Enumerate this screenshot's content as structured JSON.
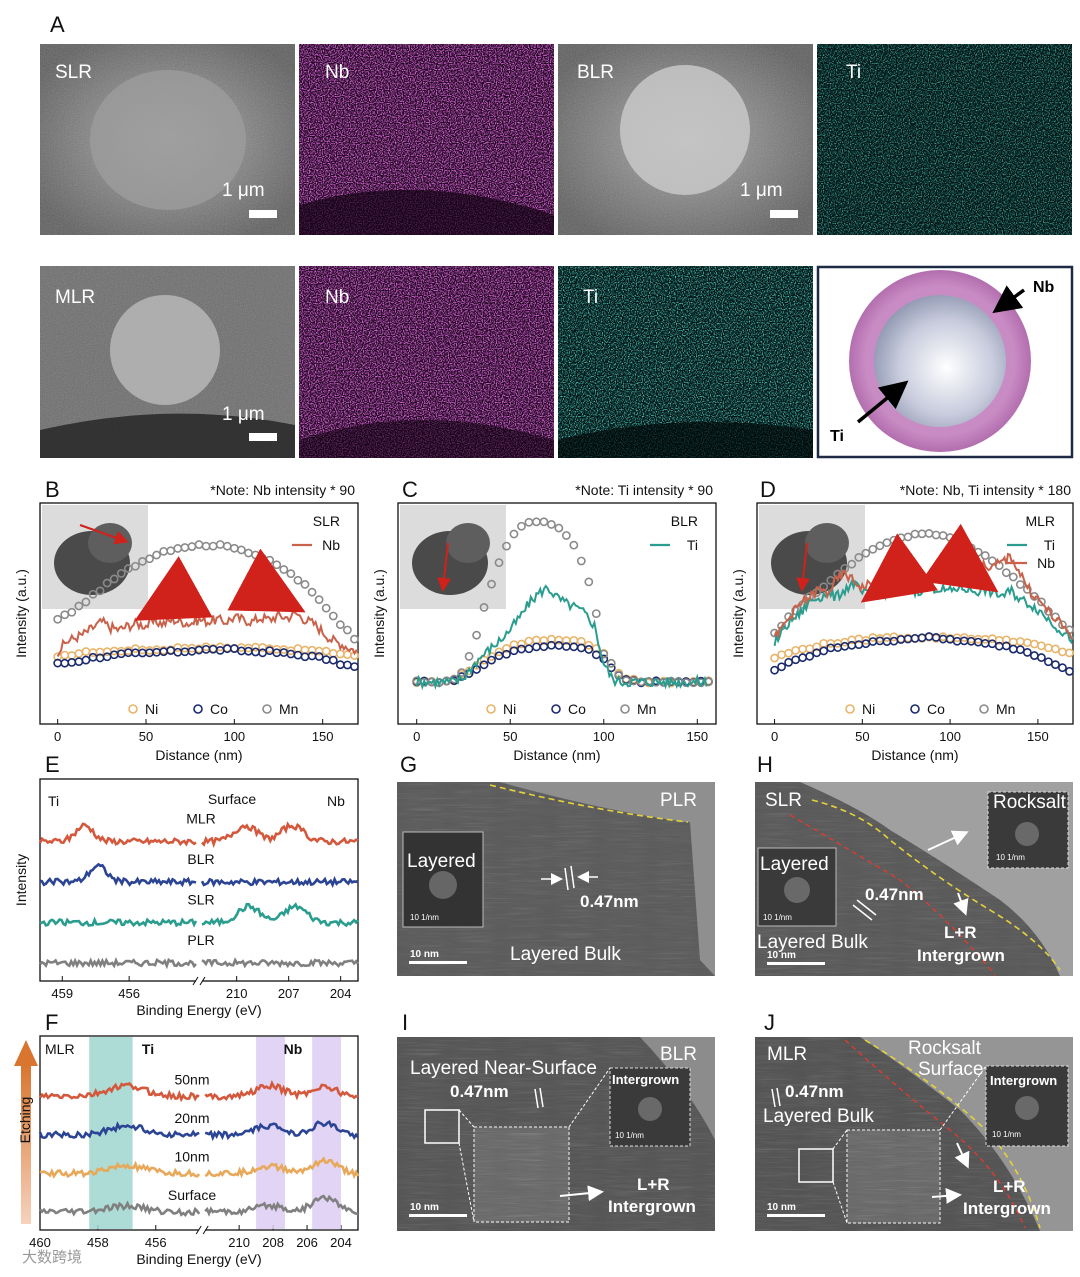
{
  "panels": {
    "A": {
      "letter": "A",
      "tiles": [
        {
          "label": "SLR",
          "scale": "1 μm"
        },
        {
          "label": "Nb"
        },
        {
          "label": "BLR",
          "scale": "1 μm"
        },
        {
          "label": "Ti"
        },
        {
          "label": "MLR",
          "scale": "1 μm"
        },
        {
          "label": "Nb"
        },
        {
          "label": "Ti"
        }
      ],
      "schematic": {
        "outer": "Nb",
        "inner": "Ti"
      }
    },
    "G": {
      "letter": "G",
      "title": "PLR",
      "fft": "Layered",
      "fft_scale": "10 1/nm",
      "spacing": "0.47nm",
      "region": "Layered Bulk",
      "scale": "10 nm"
    },
    "H": {
      "letter": "H",
      "title": "SLR",
      "fft_left": "Layered",
      "fft_right": "Rocksalt",
      "fft_scale": "10 1/nm",
      "spacing": "0.47nm",
      "region1": "Layered Bulk",
      "region2a": "L+R",
      "region2b": "Intergrown",
      "scale": "10 nm"
    },
    "I": {
      "letter": "I",
      "title": "BLR",
      "region1": "Layered Near-Surface",
      "spacing": "0.47nm",
      "fft": "Intergrown",
      "fft_scale": "10 1/nm",
      "region2a": "L+R",
      "region2b": "Intergrown",
      "scale": "10 nm"
    },
    "J": {
      "letter": "J",
      "title": "MLR",
      "spacing": "0.47nm",
      "region1": "Layered Bulk",
      "region_top_a": "Rocksalt",
      "region_top_b": "Surface",
      "fft": "Intergrown",
      "fft_scale": "10 1/nm",
      "region2a": "L+R",
      "region2b": "Intergrown",
      "scale": "10 nm"
    }
  },
  "chart_data": [
    {
      "panel": "B",
      "type": "line",
      "note": "*Note: Nb intensity * 90",
      "xlabel": "Distance (nm)",
      "ylabel": "Intensity (a.u.)",
      "xlim": [
        -10,
        170
      ],
      "ylim": [
        0,
        1
      ],
      "xticks": [
        0,
        50,
        100,
        150
      ],
      "title_tag": "SLR",
      "series": [
        {
          "name": "Nb",
          "style": "line",
          "color": "#c9624a",
          "x": [
            0,
            5,
            10,
            15,
            20,
            25,
            30,
            35,
            40,
            45,
            50,
            55,
            60,
            65,
            70,
            75,
            80,
            85,
            90,
            95,
            100,
            105,
            110,
            115,
            120,
            125,
            130,
            135,
            140,
            145,
            150,
            155,
            160,
            165,
            170
          ],
          "y": [
            0.31,
            0.36,
            0.38,
            0.4,
            0.43,
            0.46,
            0.43,
            0.42,
            0.44,
            0.45,
            0.44,
            0.46,
            0.45,
            0.47,
            0.46,
            0.45,
            0.47,
            0.46,
            0.47,
            0.46,
            0.48,
            0.47,
            0.46,
            0.48,
            0.47,
            0.49,
            0.48,
            0.5,
            0.47,
            0.45,
            0.41,
            0.37,
            0.35,
            0.33,
            0.31
          ]
        },
        {
          "name": "Ni",
          "style": "marker",
          "color": "#e8b46a",
          "x": [
            0,
            10,
            20,
            30,
            40,
            50,
            60,
            70,
            80,
            90,
            100,
            110,
            120,
            130,
            140,
            150,
            160,
            170
          ],
          "y": [
            0.28,
            0.3,
            0.31,
            0.31,
            0.32,
            0.32,
            0.32,
            0.33,
            0.33,
            0.33,
            0.33,
            0.33,
            0.33,
            0.32,
            0.32,
            0.31,
            0.3,
            0.29
          ]
        },
        {
          "name": "Co",
          "style": "marker",
          "color": "#1a2a6c",
          "x": [
            0,
            10,
            20,
            30,
            40,
            50,
            60,
            70,
            80,
            90,
            100,
            110,
            120,
            130,
            140,
            150,
            160,
            170
          ],
          "y": [
            0.25,
            0.26,
            0.28,
            0.29,
            0.3,
            0.3,
            0.31,
            0.31,
            0.32,
            0.32,
            0.32,
            0.31,
            0.31,
            0.3,
            0.29,
            0.28,
            0.25,
            0.23
          ]
        },
        {
          "name": "Mn",
          "style": "marker",
          "color": "#8a8a8a",
          "x": [
            0,
            10,
            20,
            30,
            40,
            50,
            60,
            70,
            80,
            90,
            100,
            110,
            120,
            130,
            140,
            150,
            160,
            170
          ],
          "y": [
            0.47,
            0.52,
            0.59,
            0.66,
            0.72,
            0.77,
            0.81,
            0.83,
            0.84,
            0.84,
            0.83,
            0.8,
            0.76,
            0.71,
            0.64,
            0.55,
            0.45,
            0.36
          ]
        }
      ],
      "legend_bottom": [
        "Ni",
        "Co",
        "Mn"
      ]
    },
    {
      "panel": "C",
      "type": "line",
      "note": "*Note: Ti intensity * 90",
      "xlabel": "Distance (nm)",
      "ylabel": "Intensity (a.u.)",
      "xlim": [
        -10,
        160
      ],
      "ylim": [
        0,
        1
      ],
      "xticks": [
        0,
        50,
        100,
        150
      ],
      "title_tag": "BLR",
      "series": [
        {
          "name": "Ti",
          "style": "line",
          "color": "#2a9d8f",
          "x": [
            0,
            10,
            20,
            25,
            30,
            35,
            40,
            45,
            50,
            55,
            60,
            65,
            70,
            75,
            80,
            85,
            90,
            95,
            100,
            105,
            110,
            120,
            130,
            140,
            150,
            155
          ],
          "y": [
            0.16,
            0.16,
            0.16,
            0.18,
            0.24,
            0.29,
            0.33,
            0.37,
            0.42,
            0.48,
            0.55,
            0.6,
            0.63,
            0.58,
            0.55,
            0.53,
            0.5,
            0.44,
            0.25,
            0.17,
            0.16,
            0.16,
            0.16,
            0.16,
            0.16,
            0.16
          ]
        },
        {
          "name": "Ni",
          "style": "marker",
          "color": "#e8b46a",
          "x": [
            0,
            10,
            20,
            30,
            40,
            50,
            60,
            70,
            80,
            90,
            100,
            110,
            120,
            130,
            140,
            150,
            155
          ],
          "y": [
            0.16,
            0.16,
            0.17,
            0.23,
            0.29,
            0.34,
            0.36,
            0.37,
            0.37,
            0.36,
            0.3,
            0.18,
            0.16,
            0.16,
            0.16,
            0.16,
            0.16
          ]
        },
        {
          "name": "Co",
          "style": "marker",
          "color": "#1a2a6c",
          "x": [
            0,
            10,
            20,
            30,
            40,
            50,
            60,
            70,
            80,
            90,
            100,
            110,
            120,
            130,
            140,
            150,
            155
          ],
          "y": [
            0.16,
            0.16,
            0.17,
            0.21,
            0.27,
            0.31,
            0.33,
            0.34,
            0.34,
            0.33,
            0.27,
            0.17,
            0.16,
            0.16,
            0.16,
            0.16,
            0.16
          ]
        },
        {
          "name": "Mn",
          "style": "marker",
          "color": "#8a8a8a",
          "x": [
            0,
            10,
            20,
            25,
            30,
            35,
            40,
            45,
            50,
            55,
            60,
            65,
            70,
            75,
            80,
            85,
            90,
            95,
            100,
            110,
            120,
            130,
            140,
            150,
            155
          ],
          "y": [
            0.16,
            0.16,
            0.17,
            0.22,
            0.33,
            0.5,
            0.65,
            0.78,
            0.87,
            0.93,
            0.95,
            0.96,
            0.95,
            0.93,
            0.89,
            0.83,
            0.72,
            0.55,
            0.3,
            0.17,
            0.16,
            0.16,
            0.16,
            0.16,
            0.16
          ]
        }
      ],
      "legend_bottom": [
        "Ni",
        "Co",
        "Mn"
      ]
    },
    {
      "panel": "D",
      "type": "line",
      "note": "*Note: Nb, Ti intensity * 180",
      "xlabel": "Distance (nm)",
      "ylabel": "Intensity (a.u.)",
      "xlim": [
        -10,
        170
      ],
      "ylim": [
        0,
        1
      ],
      "xticks": [
        0,
        50,
        100,
        150
      ],
      "title_tag": "MLR",
      "series": [
        {
          "name": "Ti",
          "style": "line",
          "color": "#2a9d8f",
          "x": [
            0,
            5,
            10,
            15,
            20,
            25,
            30,
            35,
            40,
            45,
            50,
            55,
            60,
            65,
            70,
            75,
            80,
            85,
            90,
            95,
            100,
            105,
            110,
            115,
            120,
            125,
            130,
            135,
            140,
            145,
            150,
            155,
            160,
            165,
            170
          ],
          "y": [
            0.35,
            0.42,
            0.47,
            0.5,
            0.56,
            0.58,
            0.6,
            0.58,
            0.62,
            0.65,
            0.6,
            0.59,
            0.61,
            0.6,
            0.62,
            0.63,
            0.61,
            0.62,
            0.63,
            0.62,
            0.61,
            0.63,
            0.62,
            0.61,
            0.62,
            0.6,
            0.59,
            0.61,
            0.57,
            0.55,
            0.52,
            0.48,
            0.44,
            0.4,
            0.37
          ]
        },
        {
          "name": "Nb",
          "style": "line",
          "color": "#c9624a",
          "x": [
            0,
            5,
            10,
            15,
            20,
            25,
            30,
            35,
            40,
            45,
            50,
            55,
            60,
            65,
            70,
            75,
            80,
            85,
            90,
            95,
            100,
            105,
            110,
            115,
            120,
            125,
            130,
            135,
            140,
            145,
            150,
            155,
            160,
            165,
            170
          ],
          "y": [
            0.37,
            0.44,
            0.5,
            0.55,
            0.58,
            0.62,
            0.6,
            0.66,
            0.7,
            0.66,
            0.63,
            0.65,
            0.64,
            0.66,
            0.67,
            0.65,
            0.68,
            0.67,
            0.66,
            0.69,
            0.68,
            0.7,
            0.69,
            0.72,
            0.74,
            0.73,
            0.76,
            0.78,
            0.7,
            0.62,
            0.57,
            0.52,
            0.47,
            0.43,
            0.39
          ]
        },
        {
          "name": "Ni",
          "style": "marker",
          "color": "#e8b46a",
          "x": [
            0,
            10,
            20,
            30,
            40,
            50,
            60,
            70,
            80,
            90,
            100,
            110,
            120,
            130,
            140,
            150,
            160,
            170
          ],
          "y": [
            0.28,
            0.31,
            0.33,
            0.35,
            0.36,
            0.37,
            0.38,
            0.38,
            0.38,
            0.38,
            0.38,
            0.38,
            0.37,
            0.37,
            0.36,
            0.34,
            0.32,
            0.3
          ]
        },
        {
          "name": "Co",
          "style": "marker",
          "color": "#1a2a6c",
          "x": [
            0,
            10,
            20,
            30,
            40,
            50,
            60,
            70,
            80,
            90,
            100,
            110,
            120,
            130,
            140,
            150,
            160,
            170
          ],
          "y": [
            0.22,
            0.26,
            0.29,
            0.32,
            0.34,
            0.35,
            0.36,
            0.37,
            0.38,
            0.38,
            0.37,
            0.36,
            0.35,
            0.34,
            0.32,
            0.29,
            0.25,
            0.21
          ]
        },
        {
          "name": "Mn",
          "style": "marker",
          "color": "#8a8a8a",
          "x": [
            0,
            10,
            20,
            30,
            40,
            50,
            60,
            70,
            80,
            90,
            100,
            110,
            120,
            130,
            140,
            150,
            160,
            170
          ],
          "y": [
            0.4,
            0.5,
            0.58,
            0.65,
            0.72,
            0.79,
            0.84,
            0.87,
            0.89,
            0.9,
            0.88,
            0.84,
            0.79,
            0.72,
            0.65,
            0.57,
            0.48,
            0.4
          ]
        }
      ],
      "legend_bottom": [
        "Ni",
        "Co",
        "Mn"
      ]
    },
    {
      "panel": "E",
      "type": "line",
      "xlabel": "Binding Energy (eV)",
      "ylabel": "Intensity",
      "segments": [
        {
          "label": "Ti",
          "xlim": [
            460,
            453
          ],
          "ticks": [
            459,
            456
          ]
        },
        {
          "label": "Nb",
          "xlim": [
            212,
            203
          ],
          "ticks": [
            210,
            207,
            204
          ]
        }
      ],
      "top_label": "Surface",
      "series": [
        {
          "name": "MLR",
          "color": "#d4583c",
          "peaks_ti": [
            458.0
          ],
          "peaks_nb": [
            209.5,
            206.8
          ],
          "offset": 3
        },
        {
          "name": "BLR",
          "color": "#2c4494",
          "peaks_ti": [
            457.4
          ],
          "peaks_nb": [],
          "offset": 2
        },
        {
          "name": "SLR",
          "color": "#2a9d8f",
          "peaks_ti": [],
          "peaks_nb": [
            209.3,
            206.6
          ],
          "offset": 1
        },
        {
          "name": "PLR",
          "color": "#808080",
          "peaks_ti": [],
          "peaks_nb": [],
          "offset": 0
        }
      ]
    },
    {
      "panel": "F",
      "type": "line",
      "xlabel": "Binding Energy (eV)",
      "ylabel": "Etching",
      "sample": "MLR",
      "segments": [
        {
          "label": "Ti",
          "xlim": [
            460,
            454.5
          ],
          "ticks": [
            460,
            458,
            456
          ]
        },
        {
          "label": "Nb",
          "xlim": [
            212,
            203
          ],
          "ticks": [
            210,
            208,
            206,
            204
          ]
        }
      ],
      "highlights": [
        {
          "segment": 0,
          "from": 458.3,
          "to": 456.8,
          "color": "#9fd6cf"
        },
        {
          "segment": 1,
          "from": 209.0,
          "to": 207.3,
          "color": "#dccdf2"
        },
        {
          "segment": 1,
          "from": 205.7,
          "to": 204.0,
          "color": "#dccdf2"
        }
      ],
      "series": [
        {
          "name": "50nm",
          "color": "#d4583c",
          "offset": 3
        },
        {
          "name": "20nm",
          "color": "#2c4494",
          "offset": 2
        },
        {
          "name": "10nm",
          "color": "#e8a85a",
          "offset": 1
        },
        {
          "name": "Surface",
          "color": "#808080",
          "offset": 0
        }
      ]
    }
  ],
  "text": {
    "B": "B",
    "C": "C",
    "D": "D",
    "E": "E",
    "F": "F",
    "surface": "Surface",
    "watermark": "大数跨境",
    "ti_label": "Ti",
    "nb_label": "Nb"
  }
}
